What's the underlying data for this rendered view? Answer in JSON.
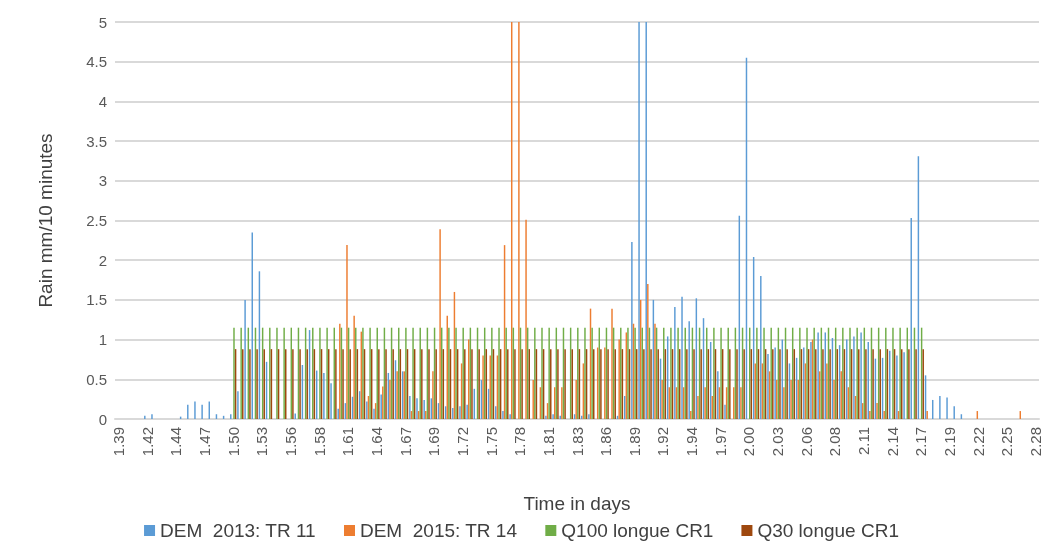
{
  "chart_data": {
    "type": "bar",
    "xlabel": "Time in days",
    "ylabel": "Rain mm/10 minutes",
    "categories": [
      "1.39",
      null,
      null,
      null,
      "1.42",
      null,
      null,
      null,
      "1.44",
      null,
      null,
      null,
      "1.47",
      null,
      null,
      null,
      "1.50",
      null,
      null,
      null,
      "1.53",
      null,
      null,
      null,
      "1.56",
      null,
      null,
      null,
      "1.58",
      null,
      null,
      null,
      "1.61",
      null,
      null,
      null,
      "1.64",
      null,
      null,
      null,
      "1.67",
      null,
      null,
      null,
      "1.69",
      null,
      null,
      null,
      "1.72",
      null,
      null,
      null,
      "1.75",
      null,
      null,
      null,
      "1.78",
      null,
      null,
      null,
      "1.81",
      null,
      null,
      null,
      "1.83",
      null,
      null,
      null,
      "1.86",
      null,
      null,
      null,
      "1.89",
      null,
      null,
      null,
      "1.92",
      null,
      null,
      null,
      "1.94",
      null,
      null,
      null,
      "1.97",
      null,
      null,
      null,
      "2.00",
      null,
      null,
      null,
      "2.03",
      null,
      null,
      null,
      "2.06",
      null,
      null,
      null,
      "2.08",
      null,
      null,
      null,
      "2.11",
      null,
      null,
      null,
      "2.14",
      null,
      null,
      null,
      "2.17",
      null,
      null,
      null,
      "2.19",
      null,
      null,
      null,
      "2.22",
      null,
      null,
      null,
      "2.25",
      null,
      null,
      null,
      "2.28"
    ],
    "series": [
      {
        "name": "DEM  2013: TR 11",
        "color": "#5b9bd5",
        "values": [
          0,
          0,
          0,
          0,
          0.04,
          0.06,
          0,
          0,
          0,
          0.03,
          0.18,
          0.22,
          0.18,
          0.22,
          0.06,
          0.04,
          0.06,
          0.35,
          1.5,
          2.35,
          1.86,
          0.72,
          0,
          0,
          0,
          0.07,
          0.68,
          1.12,
          0.61,
          0.58,
          0.45,
          0.13,
          0.2,
          0.28,
          0.35,
          0.22,
          0.13,
          0.31,
          0.58,
          0.74,
          0.6,
          0.29,
          0.26,
          0.24,
          0.26,
          0.2,
          0.16,
          0.14,
          0.16,
          0.18,
          0.38,
          0.49,
          0.38,
          0.16,
          0.1,
          0.06,
          0,
          0,
          0,
          0,
          0.04,
          0.06,
          0.04,
          0,
          0.06,
          0.04,
          0.06,
          0,
          0,
          0,
          0.04,
          0.29,
          2.23,
          5,
          5,
          1.5,
          0.76,
          1.04,
          1.41,
          1.54,
          1.23,
          1.52,
          1.27,
          0.97,
          0.6,
          0.18,
          0,
          2.56,
          4.55,
          2.04,
          1.8,
          0.82,
          0.9,
          1,
          0.7,
          0.77,
          0.9,
          0.97,
          1.09,
          1.09,
          1.02,
          0.93,
          1,
          1.04,
          1.09,
          0.97,
          0.76,
          0.77,
          0.86,
          0.8,
          0.84,
          2.53,
          3.31,
          0.55,
          0.24,
          0.29,
          0.27,
          0.16,
          0.06,
          0,
          0,
          0,
          0,
          0,
          0,
          0,
          0,
          0,
          0
        ]
      },
      {
        "name": "DEM  2015: TR 14",
        "color": "#ed7d31",
        "values": [
          0,
          0,
          0,
          0,
          0,
          0,
          0,
          0,
          0,
          0,
          0,
          0,
          0,
          0,
          0,
          0,
          0,
          0,
          0,
          0,
          0,
          0,
          0,
          0,
          0,
          0,
          0,
          0,
          0,
          0,
          0,
          1.2,
          2.19,
          1.3,
          1.1,
          0.29,
          0.2,
          0.41,
          0.49,
          0.6,
          0.6,
          0.1,
          0.1,
          0.1,
          0.6,
          2.39,
          1.3,
          1.6,
          0.7,
          1,
          0,
          0.8,
          0.8,
          0.8,
          2.19,
          5,
          5,
          2.51,
          0.49,
          0.4,
          0.2,
          0.4,
          0.4,
          0,
          0.49,
          0.7,
          1.39,
          0.9,
          0.9,
          1.39,
          1,
          1.09,
          1.2,
          1.5,
          1.7,
          1.2,
          0.49,
          0.4,
          0.4,
          0.4,
          0.1,
          0.29,
          0.4,
          0.29,
          0.4,
          0.4,
          0.4,
          0.4,
          0,
          0.7,
          0.7,
          0.6,
          0.49,
          0.4,
          0.49,
          0.49,
          0.7,
          1,
          0.6,
          0.7,
          0.49,
          0.6,
          0.4,
          0.29,
          0.2,
          0.1,
          0.2,
          0.1,
          0,
          0.1,
          0,
          0,
          0,
          0.1,
          0,
          0,
          0,
          0,
          0,
          0,
          0.1,
          0,
          0,
          0,
          0,
          0,
          0.1,
          0,
          0
        ]
      },
      {
        "name": "Q100 longue CR1",
        "color": "#70ad47",
        "values": [
          0,
          0,
          0,
          0,
          0,
          0,
          0,
          0,
          0,
          0,
          0,
          0,
          0,
          0,
          0,
          0,
          1.15,
          1.15,
          1.15,
          1.15,
          1.15,
          1.15,
          1.15,
          1.15,
          1.15,
          1.15,
          1.15,
          1.15,
          1.15,
          1.15,
          1.15,
          1.15,
          1.15,
          1.15,
          1.15,
          1.15,
          1.15,
          1.15,
          1.15,
          1.15,
          1.15,
          1.15,
          1.15,
          1.15,
          1.15,
          1.15,
          1.15,
          1.15,
          1.15,
          1.15,
          1.15,
          1.15,
          1.15,
          1.15,
          1.15,
          1.15,
          1.15,
          1.15,
          1.15,
          1.15,
          1.15,
          1.15,
          1.15,
          1.15,
          1.15,
          1.15,
          1.15,
          1.15,
          1.15,
          1.15,
          1.15,
          1.15,
          1.15,
          1.15,
          1.15,
          1.15,
          1.15,
          1.15,
          1.15,
          1.15,
          1.15,
          1.15,
          1.15,
          1.15,
          1.15,
          1.15,
          1.15,
          1.15,
          1.15,
          1.15,
          1.15,
          1.15,
          1.15,
          1.15,
          1.15,
          1.15,
          1.15,
          1.15,
          1.15,
          1.15,
          1.15,
          1.15,
          1.15,
          1.15,
          1.15,
          1.15,
          1.15,
          1.15,
          1.15,
          1.15,
          1.15,
          1.15,
          1.15,
          0,
          0,
          0,
          0,
          0,
          0,
          0,
          0,
          0,
          0,
          0,
          0,
          0,
          0,
          0,
          0
        ]
      },
      {
        "name": "Q30 longue CR1",
        "color": "#9e480e",
        "values": [
          0,
          0,
          0,
          0,
          0,
          0,
          0,
          0,
          0,
          0,
          0,
          0,
          0,
          0,
          0,
          0,
          0.88,
          0.88,
          0.88,
          0.88,
          0.88,
          0.88,
          0.88,
          0.88,
          0.88,
          0.88,
          0.88,
          0.88,
          0.88,
          0.88,
          0.88,
          0.88,
          0.88,
          0.88,
          0.88,
          0.88,
          0.88,
          0.88,
          0.88,
          0.88,
          0.88,
          0.88,
          0.88,
          0.88,
          0.88,
          0.88,
          0.88,
          0.88,
          0.88,
          0.88,
          0.88,
          0.88,
          0.88,
          0.88,
          0.88,
          0.88,
          0.88,
          0.88,
          0.88,
          0.88,
          0.88,
          0.88,
          0.88,
          0.88,
          0.88,
          0.88,
          0.88,
          0.88,
          0.88,
          0.88,
          0.88,
          0.88,
          0.88,
          0.88,
          0.88,
          0.88,
          0.88,
          0.88,
          0.88,
          0.88,
          0.88,
          0.88,
          0.88,
          0.88,
          0.88,
          0.88,
          0.88,
          0.88,
          0.88,
          0.88,
          0.88,
          0.88,
          0.88,
          0.88,
          0.88,
          0.88,
          0.88,
          0.88,
          0.88,
          0.88,
          0.88,
          0.88,
          0.88,
          0.88,
          0.88,
          0.88,
          0.88,
          0.88,
          0.88,
          0.88,
          0.88,
          0.88,
          0.88,
          0,
          0,
          0,
          0,
          0,
          0,
          0,
          0,
          0,
          0,
          0,
          0,
          0,
          0,
          0,
          0
        ]
      }
    ],
    "ylim": [
      0,
      5
    ],
    "yticks": [
      0,
      0.5,
      1,
      1.5,
      2,
      2.5,
      3,
      3.5,
      4,
      4.5,
      5
    ],
    "grid": "y",
    "legend": "bottom"
  }
}
